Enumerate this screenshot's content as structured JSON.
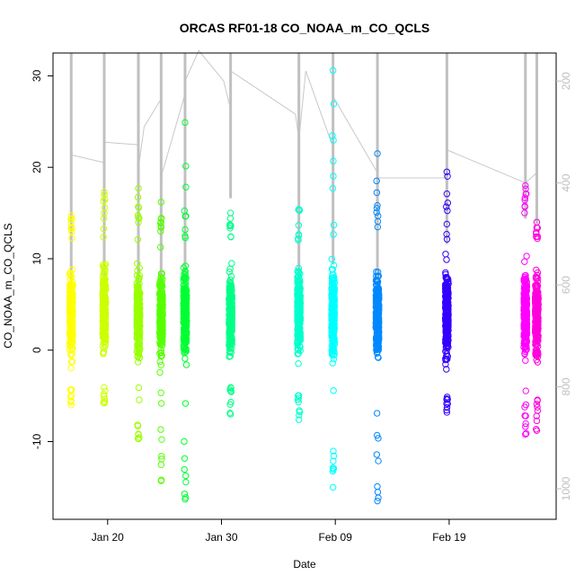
{
  "chart_data": {
    "type": "scatter",
    "title": "ORCAS RF01-18 CO_NOAA_m_CO_QCLS",
    "xlabel": "Date",
    "ylabel": "CO_NOAA_m_CO_QCLS",
    "ylim": [
      -18.5,
      32.5
    ],
    "y_ticks": [
      -10,
      0,
      10,
      20,
      30
    ],
    "x_ticks": [
      {
        "day": 19,
        "label": "Jan 20"
      },
      {
        "day": 29,
        "label": "Jan 30"
      },
      {
        "day": 39,
        "label": "Feb 09"
      },
      {
        "day": 49,
        "label": "Feb 19"
      }
    ],
    "right_axis": {
      "ylim": [
        1060,
        145
      ],
      "ticks": [
        200,
        400,
        600,
        800,
        1000
      ]
    },
    "grid": false,
    "flights": [
      {
        "day": 15.8,
        "ymin": -6.0,
        "ymax": 14.7,
        "color": "#ffff00",
        "pressure_min": 345,
        "pressure_max": 630
      },
      {
        "day": 18.7,
        "ymin": -5.8,
        "ymax": 17.3,
        "color": "#ccff00",
        "pressure_min": 360,
        "pressure_max": 600
      },
      {
        "day": 21.7,
        "ymin": -9.7,
        "ymax": 17.7,
        "color": "#99ff00",
        "pressure_min": 372,
        "pressure_max": 620
      },
      {
        "day": 23.7,
        "ymin": -14.3,
        "ymax": 16.2,
        "color": "#55ff00",
        "pressure_min": 390,
        "pressure_max": 700
      },
      {
        "day": 25.8,
        "ymin": -16.3,
        "ymax": 24.9,
        "color": "#00ff33",
        "pressure_min": 225,
        "pressure_max": 640
      },
      {
        "day": 29.8,
        "ymin": -7.0,
        "ymax": 15.0,
        "color": "#00ff88",
        "pressure_min": 255,
        "pressure_max": 430
      },
      {
        "day": 35.8,
        "ymin": -7.6,
        "ymax": 15.4,
        "color": "#00ffcc",
        "pressure_min": 315,
        "pressure_max": 590
      },
      {
        "day": 38.8,
        "ymin": -15.0,
        "ymax": 30.6,
        "color": "#00ffff",
        "pressure_min": 330,
        "pressure_max": 560
      },
      {
        "day": 42.7,
        "ymin": -16.5,
        "ymax": 21.5,
        "color": "#0088ff",
        "pressure_min": 355,
        "pressure_max": 660
      },
      {
        "day": 48.8,
        "ymin": -6.8,
        "ymax": 19.5,
        "color": "#3300ff",
        "pressure_min": 390,
        "pressure_max": 520
      },
      {
        "day": 55.7,
        "ymin": -9.2,
        "ymax": 18.0,
        "color": "#ff00ff",
        "pressure_min": 400,
        "pressure_max": 470
      },
      {
        "day": 56.7,
        "ymin": -8.8,
        "ymax": 14.0,
        "color": "#ff00dd",
        "pressure_min": 395,
        "pressure_max": 480
      }
    ],
    "pressure_track": [
      [
        15.8,
        345
      ],
      [
        18.7,
        360
      ],
      [
        18.7,
        320
      ],
      [
        21.7,
        325
      ],
      [
        21.7,
        372
      ],
      [
        22.2,
        290
      ],
      [
        23.7,
        235
      ],
      [
        23.7,
        420
      ],
      [
        23.8,
        380
      ],
      [
        25.8,
        225
      ],
      [
        25.8,
        200
      ],
      [
        27.0,
        140
      ],
      [
        29.2,
        200
      ],
      [
        29.8,
        255
      ],
      [
        29.8,
        180
      ],
      [
        35.5,
        265
      ],
      [
        35.8,
        315
      ],
      [
        36.4,
        180
      ],
      [
        38.8,
        330
      ],
      [
        38.8,
        230
      ],
      [
        42.7,
        380
      ],
      [
        42.7,
        390
      ],
      [
        48.8,
        390
      ],
      [
        48.8,
        335
      ],
      [
        55.7,
        400
      ],
      [
        56.7,
        380
      ],
      [
        56.7,
        420
      ]
    ]
  }
}
